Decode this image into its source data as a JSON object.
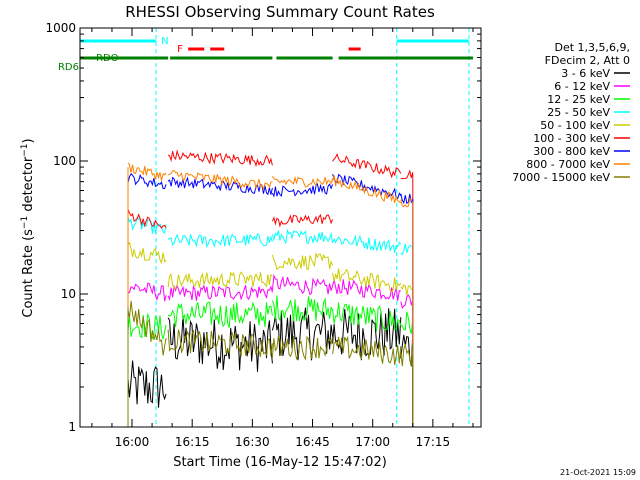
{
  "chart_data": {
    "type": "line",
    "title": "RHESSI Observing Summary Count Rates",
    "xlabel": "Start Time (16-May-12 15:47:02)",
    "ylabel": "Count Rate (s⁻¹ detector⁻¹)",
    "ylabel_main": "Count Rate (s",
    "ylabel_mid": " detector",
    "ylabel_close": ")",
    "ylabel_exp": "−1",
    "y_scale": "log",
    "ylim": [
      1,
      1000
    ],
    "xlim": [
      "15:47:02",
      "17:27:00"
    ],
    "x_ticks": [
      "16:00",
      "16:15",
      "16:30",
      "16:45",
      "17:00",
      "17:15"
    ],
    "y_ticks": [
      "1",
      "10",
      "100",
      "1000"
    ],
    "grid": false,
    "legend_position": "right",
    "legend_header": [
      "Det 1,3,5,6,9,",
      "FDecim 2, Att 0"
    ],
    "timestamp": "21-Oct-2021 15:09",
    "flag_labels": {
      "night": "N",
      "flare": "F",
      "saa": "RDO",
      "decim": "RD6"
    },
    "colors": {
      "night": "#00ffff",
      "flare": "#ff0000",
      "saa": "#008000",
      "decim": "#008000"
    },
    "night_intervals": [
      [
        "15:47:02",
        "16:06:00"
      ],
      [
        "17:06:00",
        "17:24:00"
      ]
    ],
    "flare_intervals": [
      [
        "16:14:00",
        "16:18:00"
      ],
      [
        "16:19:30",
        "16:23:00"
      ],
      [
        "16:54:00",
        "16:57:00"
      ]
    ],
    "saa_intervals": [
      [
        "15:48:00",
        "16:09:00"
      ],
      [
        "16:09:30",
        "16:35:00"
      ],
      [
        "16:36:00",
        "16:50:00"
      ],
      [
        "16:51:30",
        "17:25:00"
      ]
    ],
    "segments": [
      [
        "15:59:00",
        "16:08:30"
      ],
      [
        "16:09:00",
        "16:35:00"
      ],
      [
        "16:35:00",
        "16:50:00"
      ],
      [
        "16:50:00",
        "17:07:00"
      ],
      [
        "17:07:00",
        "17:10:00"
      ]
    ],
    "series": [
      {
        "name": "3 - 6 keV",
        "color": "#000000",
        "segment_values": [
          [
            2.0,
            2.0
          ],
          [
            4.5,
            4.0
          ],
          [
            5.0,
            5.0
          ],
          [
            5.0,
            5.0
          ],
          [
            4.0,
            4.0
          ]
        ]
      },
      {
        "name": "6 - 12 keV",
        "color": "#ff00ff",
        "segment_values": [
          [
            11.5,
            10.0
          ],
          [
            10.0,
            10.5
          ],
          [
            12.0,
            11.0
          ],
          [
            11.5,
            10.0
          ],
          [
            9.0,
            9.0
          ]
        ]
      },
      {
        "name": "12 - 25 keV",
        "color": "#00ff00",
        "segment_values": [
          [
            6.0,
            5.5
          ],
          [
            7.0,
            7.0
          ],
          [
            8.0,
            7.5
          ],
          [
            7.5,
            6.0
          ],
          [
            6.0,
            6.0
          ]
        ]
      },
      {
        "name": "25 - 50 keV",
        "color": "#00ffff",
        "segment_values": [
          [
            35.0,
            30.0
          ],
          [
            25.0,
            25.5
          ],
          [
            27.0,
            27.0
          ],
          [
            26.0,
            22.5
          ],
          [
            22.0,
            22.0
          ]
        ]
      },
      {
        "name": "50 - 100 keV",
        "color": "#cccc00",
        "segment_values": [
          [
            22.0,
            19.0
          ],
          [
            12.5,
            13.0
          ],
          [
            17.5,
            17.5
          ],
          [
            14.0,
            11.5
          ],
          [
            11.0,
            11.0
          ]
        ]
      },
      {
        "name": "100 - 300 keV",
        "color": "#ff0000",
        "segment_values": [
          [
            40.0,
            31.0
          ],
          [
            110.0,
            100.0
          ],
          [
            35.0,
            37.0
          ],
          [
            105.0,
            80.0
          ],
          [
            80.0,
            80.0
          ]
        ]
      },
      {
        "name": "300 - 800 keV",
        "color": "#0000ff",
        "segment_values": [
          [
            75.0,
            66.0
          ],
          [
            70.0,
            61.0
          ],
          [
            59.0,
            62.0
          ],
          [
            75.0,
            55.0
          ],
          [
            52.0,
            52.0
          ]
        ]
      },
      {
        "name": "800 - 7000 keV",
        "color": "#ff8000",
        "segment_values": [
          [
            90.0,
            76.0
          ],
          [
            80.0,
            65.0
          ],
          [
            70.0,
            70.0
          ],
          [
            72.0,
            50.0
          ],
          [
            49.0,
            49.0
          ]
        ]
      },
      {
        "name": "7000 - 15000 keV",
        "color": "#808000",
        "segment_values": [
          [
            8.0,
            4.0
          ],
          [
            4.5,
            4.0
          ],
          [
            4.0,
            4.0
          ],
          [
            4.0,
            3.5
          ],
          [
            3.5,
            3.5
          ]
        ]
      }
    ]
  }
}
